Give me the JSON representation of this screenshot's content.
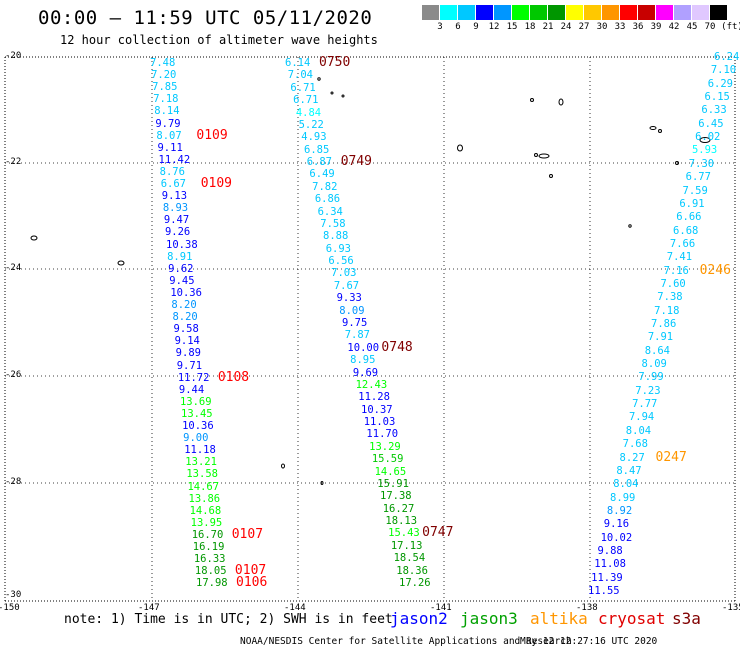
{
  "header": {
    "title": "00:00 – 11:59 UTC 05/11/2020",
    "subtitle": "12 hour collection of altimeter wave heights"
  },
  "legend": {
    "unit_label": "(ft)",
    "ticks": [
      "3",
      "6",
      "9",
      "12",
      "15",
      "18",
      "21",
      "24",
      "27",
      "30",
      "33",
      "36",
      "39",
      "42",
      "45",
      "70"
    ],
    "colors": [
      "#8a8a8a",
      "#00ffff",
      "#00c8ff",
      "#0000ff",
      "#0096ff",
      "#00ff00",
      "#00c800",
      "#009600",
      "#ffff00",
      "#ffc800",
      "#ff9600",
      "#ff0000",
      "#c80000",
      "#ff00ff",
      "#b0a0ff",
      "#e0c8ff",
      "#000000"
    ]
  },
  "axes": {
    "lat_labels": [
      "-20",
      "-22",
      "-24",
      "-26",
      "-28",
      "-30"
    ],
    "lon_labels": [
      "-150",
      "-147",
      "-144",
      "-141",
      "-138",
      "-135"
    ]
  },
  "tracks": {
    "track1": {
      "values": [
        "7.48",
        "7.20",
        "7.85",
        "7.18",
        "8.14",
        "9.79",
        "8.07",
        "9.11",
        "11.42",
        "8.76",
        "6.67",
        "9.13",
        "8.93",
        "9.47",
        "9.26",
        "10.38",
        "8.91",
        "9.62",
        "9.45",
        "10.36",
        "8.20",
        "8.20",
        "9.58",
        "9.14",
        "9.89",
        "9.71",
        "11.72",
        "9.44",
        "13.69",
        "13.45",
        "10.36",
        "9.00",
        "11.18",
        "13.21",
        "13.58",
        "14.67",
        "13.86",
        "14.68",
        "13.95",
        "16.70",
        "16.19",
        "16.33",
        "18.05",
        "17.98"
      ],
      "colors": [
        "#00c8ff",
        "#00c8ff",
        "#00c8ff",
        "#00c8ff",
        "#00c8ff",
        "#0000ff",
        "#00c8ff",
        "#0000ff",
        "#0000ff",
        "#00c8ff",
        "#00c8ff",
        "#0000ff",
        "#0096ff",
        "#0000ff",
        "#0000ff",
        "#0000ff",
        "#00c8ff",
        "#0000ff",
        "#0000ff",
        "#0000ff",
        "#0096ff",
        "#0096ff",
        "#0000ff",
        "#0000ff",
        "#0000ff",
        "#0000ff",
        "#0000ff",
        "#0000ff",
        "#00ff00",
        "#00ff00",
        "#0000ff",
        "#0096ff",
        "#0000ff",
        "#00ff00",
        "#00ff00",
        "#00ff00",
        "#00ff00",
        "#00ff00",
        "#00ff00",
        "#009600",
        "#009600",
        "#009600",
        "#009600",
        "#009600"
      ],
      "times": [
        {
          "text": "0109",
          "color": "#ff0000",
          "row": 6
        },
        {
          "text": "0109",
          "color": "#ff0000",
          "row": 10
        },
        {
          "text": "0108",
          "color": "#ff0000",
          "row": 26
        },
        {
          "text": "0107",
          "color": "#ff0000",
          "row": 39
        },
        {
          "text": "0107",
          "color": "#ff0000",
          "row": 42
        },
        {
          "text": "0106",
          "color": "#ff0000",
          "row": 43
        }
      ]
    },
    "track2": {
      "values": [
        "6.14",
        "7.04",
        "6.71",
        "6.71",
        "4.84",
        "5.22",
        "4.93",
        "6.85",
        "6.87",
        "6.49",
        "7.82",
        "6.86",
        "6.34",
        "7.58",
        "8.88",
        "6.93",
        "6.56",
        "7.03",
        "7.67",
        "9.33",
        "8.09",
        "9.75",
        "7.87",
        "10.00",
        "8.95",
        "9.69",
        "12.43",
        "11.28",
        "10.37",
        "11.03",
        "11.70",
        "13.29",
        "15.59",
        "14.65",
        "15.91",
        "17.38",
        "16.27",
        "18.13",
        "15.43",
        "17.13",
        "18.54",
        "18.36",
        "17.26"
      ],
      "colors": [
        "#00c8ff",
        "#00c8ff",
        "#00c8ff",
        "#00c8ff",
        "#00ffff",
        "#00c8ff",
        "#00c8ff",
        "#00c8ff",
        "#00c8ff",
        "#00c8ff",
        "#00c8ff",
        "#00c8ff",
        "#00c8ff",
        "#00c8ff",
        "#00c8ff",
        "#00c8ff",
        "#00c8ff",
        "#00c8ff",
        "#00c8ff",
        "#0000ff",
        "#0096ff",
        "#0000ff",
        "#00c8ff",
        "#0000ff",
        "#00c8ff",
        "#0000ff",
        "#00ff00",
        "#0000ff",
        "#0000ff",
        "#0000ff",
        "#0000ff",
        "#00ff00",
        "#00c800",
        "#00ff00",
        "#009600",
        "#009600",
        "#009600",
        "#009600",
        "#00ff00",
        "#009600",
        "#009600",
        "#009600",
        "#009600"
      ],
      "times": [
        {
          "text": "0750",
          "color": "#800000",
          "row": 0
        },
        {
          "text": "0749",
          "color": "#800000",
          "row": 8
        },
        {
          "text": "0748",
          "color": "#800000",
          "row": 23
        },
        {
          "text": "0747",
          "color": "#800000",
          "row": 38
        }
      ]
    },
    "track3": {
      "values": [
        "6.24",
        "7.10",
        "6.29",
        "6.15",
        "6.33",
        "6.45",
        "6.02",
        "5.93",
        "7.30",
        "6.77",
        "7.59",
        "6.91",
        "6.66",
        "6.68",
        "7.66",
        "7.41",
        "7.16",
        "7.60",
        "7.38",
        "7.18",
        "7.86",
        "7.91",
        "8.64",
        "8.09",
        "7.99",
        "7.23",
        "7.77",
        "7.94",
        "8.04",
        "7.68",
        "8.27",
        "8.47",
        "8.04",
        "8.99",
        "8.92",
        "9.16",
        "10.02",
        "9.88",
        "11.08",
        "11.39",
        "11.55"
      ],
      "colors": [
        "#00c8ff",
        "#00c8ff",
        "#00c8ff",
        "#00c8ff",
        "#00c8ff",
        "#00c8ff",
        "#00c8ff",
        "#00ffff",
        "#00c8ff",
        "#00c8ff",
        "#00c8ff",
        "#00c8ff",
        "#00c8ff",
        "#00c8ff",
        "#00c8ff",
        "#00c8ff",
        "#00c8ff",
        "#00c8ff",
        "#00c8ff",
        "#00c8ff",
        "#00c8ff",
        "#00c8ff",
        "#00c8ff",
        "#00c8ff",
        "#00c8ff",
        "#00c8ff",
        "#00c8ff",
        "#00c8ff",
        "#00c8ff",
        "#00c8ff",
        "#00c8ff",
        "#00c8ff",
        "#00c8ff",
        "#00c8ff",
        "#0096ff",
        "#0000ff",
        "#0000ff",
        "#0000ff",
        "#0000ff",
        "#0000ff",
        "#0000ff"
      ],
      "times": [
        {
          "text": "0246",
          "color": "#ff9600",
          "row": 16
        },
        {
          "text": "0247",
          "color": "#ff9600",
          "row": 30
        }
      ]
    }
  },
  "footer": {
    "note": "note: 1) Time is in UTC; 2) SWH is in feet",
    "satellites": [
      {
        "name": "jason2",
        "color": "#0000ff"
      },
      {
        "name": "jason3",
        "color": "#00a000"
      },
      {
        "name": "altika",
        "color": "#ff9600"
      },
      {
        "name": "cryosat",
        "color": "#e00000"
      },
      {
        "name": "s3a",
        "color": "#800000"
      }
    ],
    "credit": "NOAA/NESDIS Center for Satellite Applications and Research",
    "timestamp": "May 12 12:27:16 UTC 2020"
  }
}
